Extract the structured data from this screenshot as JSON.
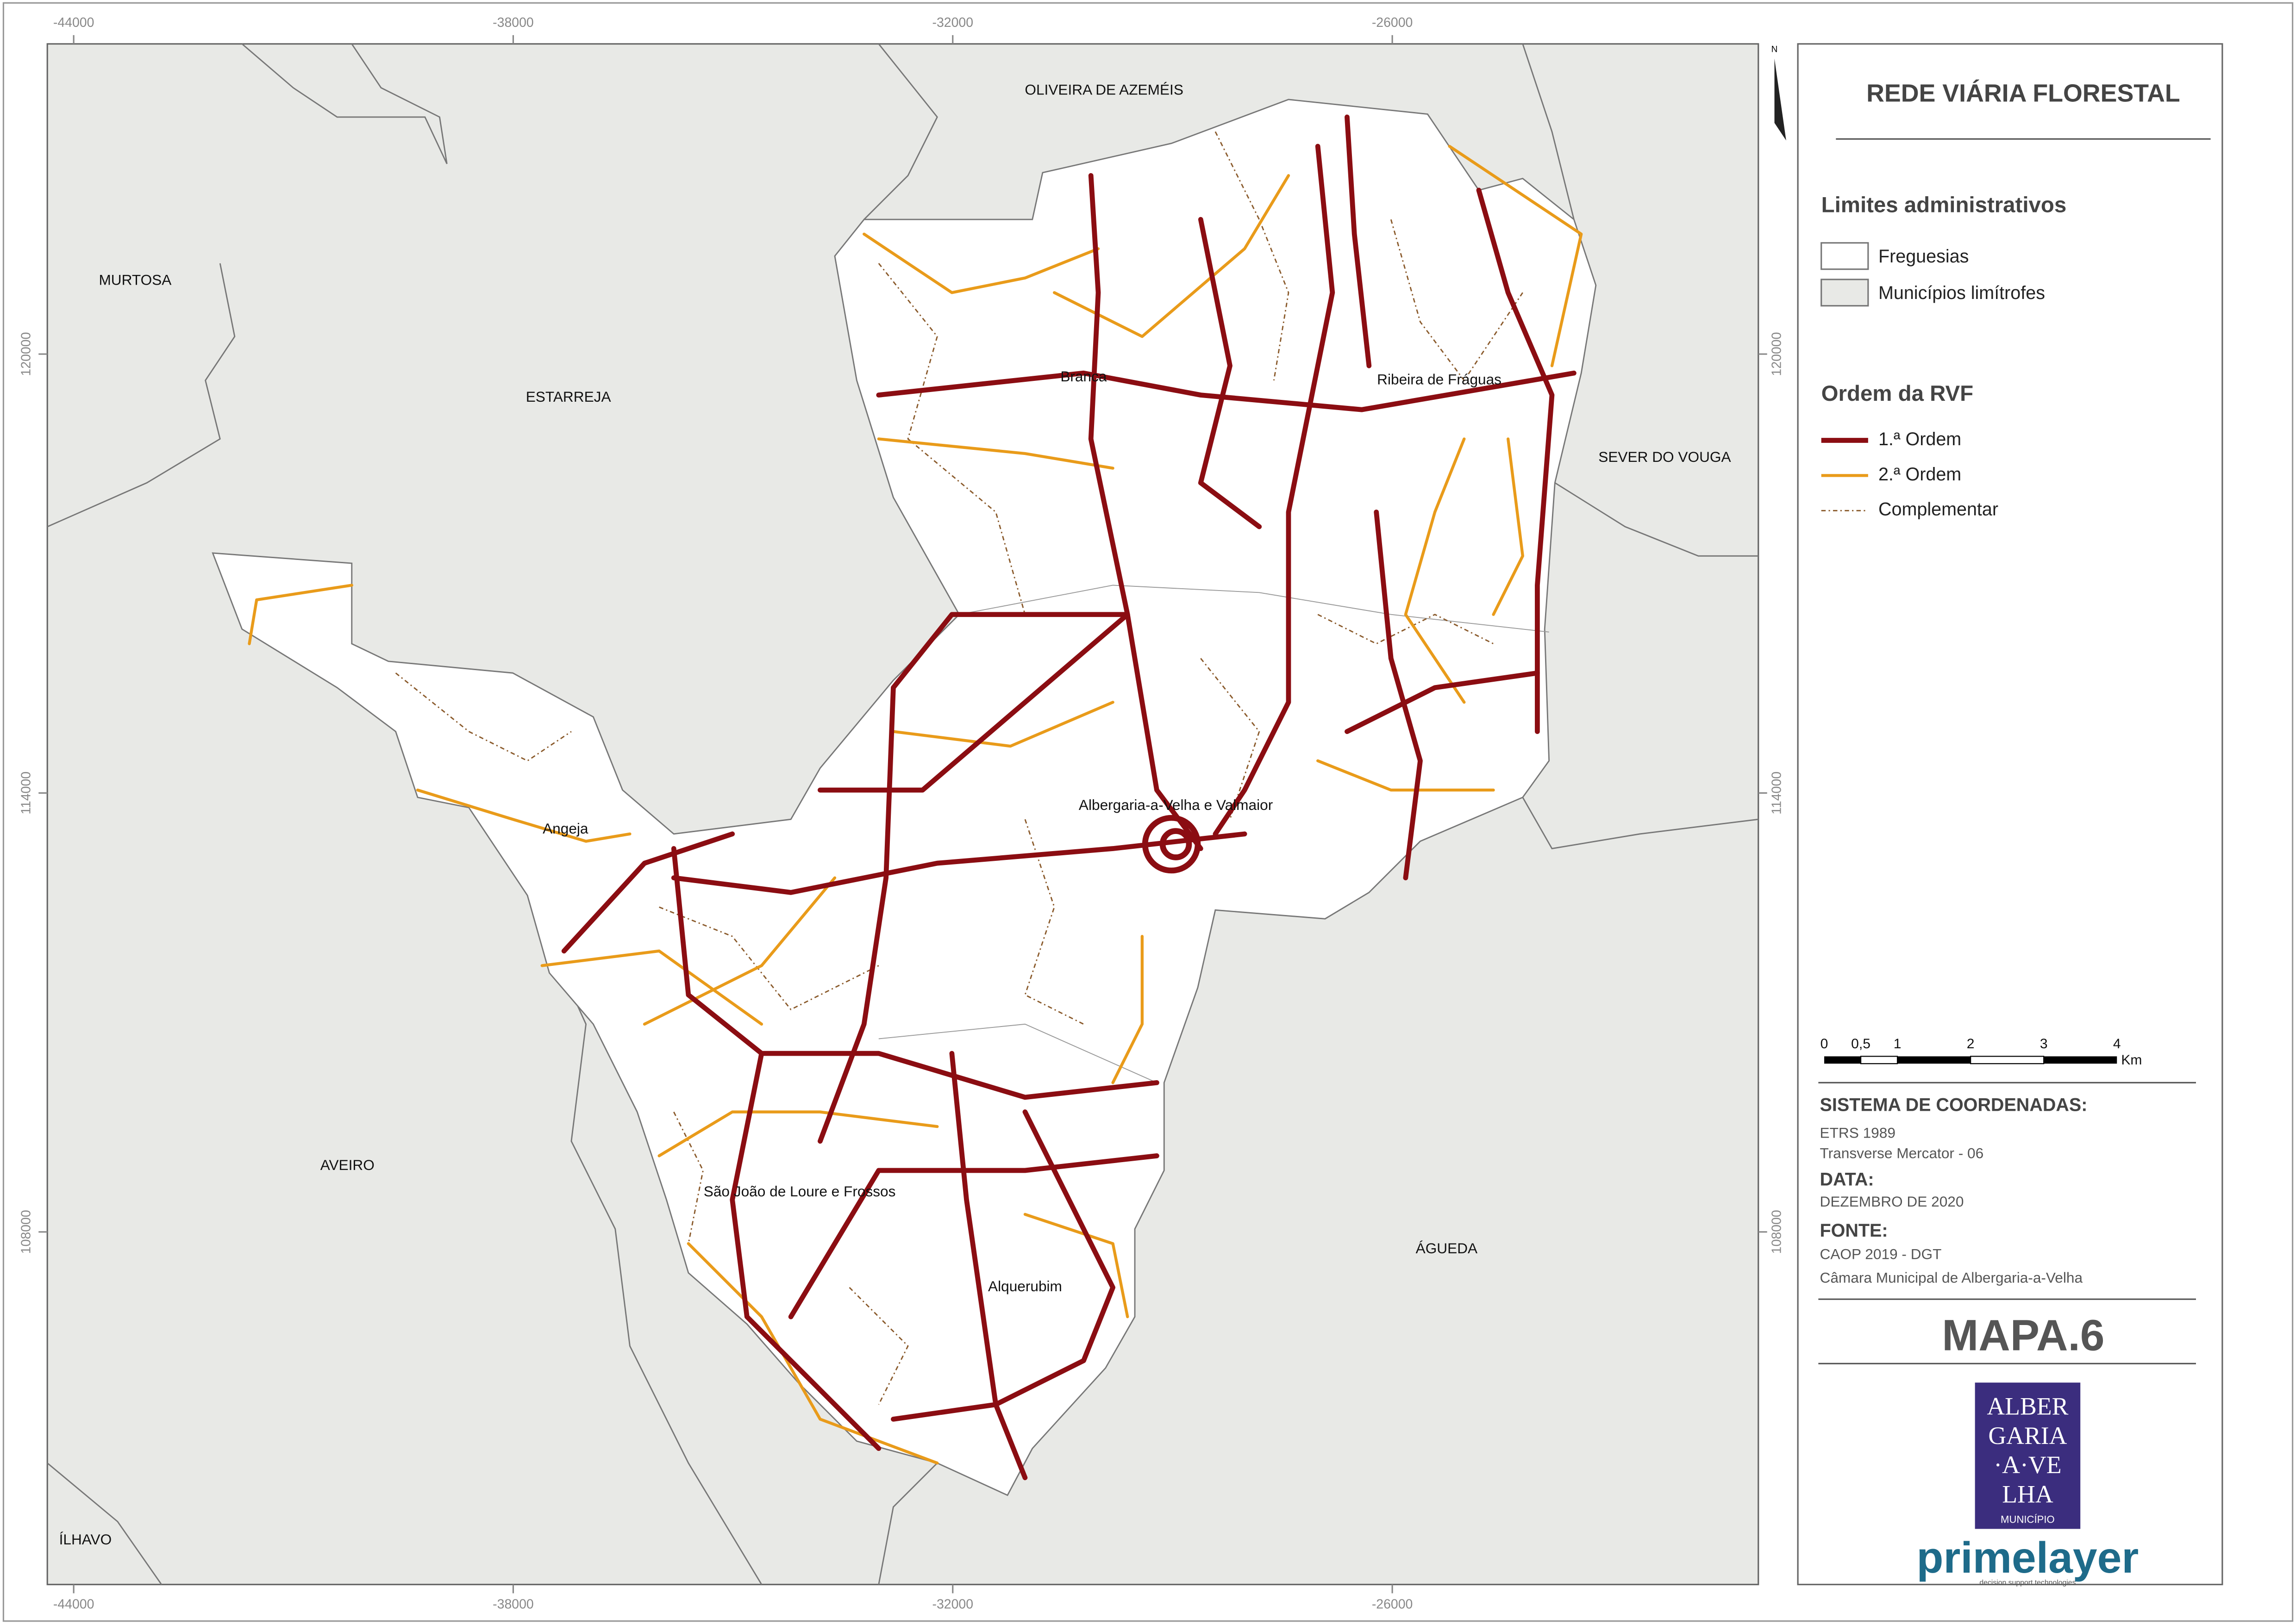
{
  "frame": {
    "x_ticks": [
      -44000,
      -38000,
      -32000,
      -26000
    ],
    "y_ticks": [
      120000,
      114000,
      108000
    ],
    "north": "N"
  },
  "places": [
    "OLIVEIRA DE AZEMÉIS",
    "MURTOSA",
    "ESTARREJA",
    "SEVER DO VOUGA",
    "AVEIRO",
    "ÁGUEDA",
    "ÍLHAVO",
    "Branca",
    "Ribeira de Fráguas",
    "Albergaria-a-Velha e Valmaior",
    "Angeja",
    "São João de Loure e Frossos",
    "Alquerubim"
  ],
  "legend": {
    "title": "REDE VIÁRIA FLORESTAL",
    "admin_title": "Limites administrativos",
    "admin_items": [
      "Freguesias",
      "Municípios limítrofes"
    ],
    "rvf_title": "Ordem da RVF",
    "rvf_items": [
      "1.ª Ordem",
      "2.ª Ordem",
      "Complementar"
    ]
  },
  "scale_bar": {
    "labels": [
      "0",
      "0,5",
      "1",
      "2",
      "3",
      "4"
    ],
    "unit": "Km"
  },
  "info": {
    "coord_title": "SISTEMA DE COORDENADAS:",
    "coord_lines": [
      "ETRS 1989",
      "Transverse Mercator - 06"
    ],
    "date_title": "DATA:",
    "date": "DEZEMBRO DE 2020",
    "source_title": "FONTE:",
    "source_lines": [
      "CAOP 2019 - DGT",
      "Câmara Municipal de Albergaria-a-Velha"
    ]
  },
  "map_id": "MAPA.6",
  "logo": {
    "lines": [
      "ALBER",
      "GARIA",
      "·A·VE",
      "LHA"
    ],
    "subtitle": "MUNICÍPIO"
  },
  "company": {
    "name": "primelayer",
    "tagline": "decision support technologies"
  }
}
